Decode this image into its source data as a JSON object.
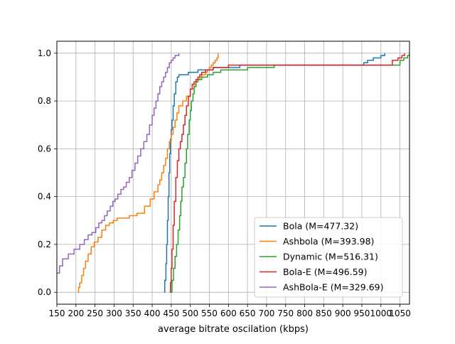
{
  "chart_data": {
    "type": "line",
    "title": "",
    "xlabel": "average bitrate oscilation (kbps)",
    "ylabel": "",
    "xlim": [
      150,
      1075
    ],
    "ylim": [
      -0.05,
      1.05
    ],
    "grid": true,
    "legend_position": "lower-right",
    "x_ticks": [
      150,
      200,
      250,
      300,
      350,
      400,
      450,
      500,
      550,
      600,
      650,
      700,
      750,
      800,
      850,
      900,
      950,
      1000,
      1050
    ],
    "x_tick_labels": [
      "150",
      "200",
      "250",
      "300",
      "350",
      "400",
      "450",
      "500",
      "550",
      "600",
      "650",
      "700",
      "750",
      "800",
      "850",
      "900",
      "950",
      "1000",
      "1050"
    ],
    "y_ticks": [
      0.0,
      0.2,
      0.4,
      0.6,
      0.8,
      1.0
    ],
    "y_tick_labels": [
      "0.0",
      "0.2",
      "0.4",
      "0.6",
      "0.8",
      "1.0"
    ],
    "series": [
      {
        "name": "Bola (M=477.32)",
        "color": "#1f77b4",
        "x": [
          431,
          433,
          436,
          438,
          440,
          442,
          444,
          446,
          448,
          450,
          452,
          455,
          458,
          462,
          466,
          470,
          478,
          495,
          520,
          560,
          630,
          955,
          965,
          975,
          980,
          990,
          1000,
          1005,
          1010
        ],
        "y": [
          0.0,
          0.05,
          0.12,
          0.2,
          0.3,
          0.4,
          0.5,
          0.58,
          0.64,
          0.68,
          0.72,
          0.78,
          0.83,
          0.88,
          0.9,
          0.91,
          0.91,
          0.92,
          0.93,
          0.94,
          0.95,
          0.96,
          0.97,
          0.97,
          0.98,
          0.98,
          0.99,
          0.99,
          1.0
        ]
      },
      {
        "name": "Ashbola (M=393.98)",
        "color": "#ff7f0e",
        "x": [
          205,
          207,
          210,
          215,
          220,
          225,
          232,
          240,
          248,
          258,
          268,
          278,
          288,
          298,
          308,
          320,
          340,
          360,
          380,
          395,
          405,
          415,
          420,
          425,
          430,
          435,
          440,
          445,
          450,
          455,
          460,
          465,
          470,
          480,
          490,
          500,
          510,
          515,
          520,
          525,
          530,
          540,
          545,
          550,
          555,
          560,
          565,
          570,
          573
        ],
        "y": [
          0.0,
          0.02,
          0.04,
          0.07,
          0.1,
          0.13,
          0.16,
          0.19,
          0.21,
          0.23,
          0.26,
          0.28,
          0.29,
          0.3,
          0.31,
          0.31,
          0.32,
          0.33,
          0.36,
          0.39,
          0.42,
          0.45,
          0.47,
          0.5,
          0.53,
          0.56,
          0.6,
          0.63,
          0.66,
          0.69,
          0.72,
          0.75,
          0.78,
          0.8,
          0.82,
          0.85,
          0.87,
          0.88,
          0.89,
          0.9,
          0.91,
          0.92,
          0.93,
          0.94,
          0.95,
          0.96,
          0.97,
          0.98,
          1.0
        ]
      },
      {
        "name": "Dynamic (M=516.31)",
        "color": "#2ca02c",
        "x": [
          448,
          452,
          456,
          460,
          464,
          468,
          472,
          475,
          478,
          482,
          486,
          490,
          493,
          497,
          500,
          503,
          507,
          510,
          515,
          520,
          530,
          545,
          560,
          580,
          600,
          650,
          720,
          900,
          1050,
          1060,
          1070,
          1075
        ],
        "y": [
          0.0,
          0.05,
          0.1,
          0.15,
          0.2,
          0.26,
          0.32,
          0.38,
          0.44,
          0.48,
          0.54,
          0.6,
          0.66,
          0.72,
          0.76,
          0.8,
          0.83,
          0.86,
          0.88,
          0.89,
          0.9,
          0.91,
          0.92,
          0.93,
          0.93,
          0.94,
          0.95,
          0.95,
          0.97,
          0.98,
          0.99,
          1.0
        ]
      },
      {
        "name": "Bola-E (M=496.59)",
        "color": "#d62728",
        "x": [
          446,
          448,
          450,
          452,
          455,
          458,
          462,
          466,
          470,
          474,
          478,
          482,
          486,
          490,
          495,
          500,
          505,
          510,
          515,
          520,
          525,
          530,
          540,
          550,
          560,
          580,
          600,
          650,
          1030,
          1045,
          1055,
          1062
        ],
        "y": [
          0.0,
          0.04,
          0.1,
          0.18,
          0.28,
          0.38,
          0.48,
          0.55,
          0.6,
          0.63,
          0.66,
          0.7,
          0.74,
          0.78,
          0.82,
          0.85,
          0.87,
          0.88,
          0.89,
          0.9,
          0.91,
          0.92,
          0.93,
          0.93,
          0.94,
          0.94,
          0.95,
          0.95,
          0.97,
          0.98,
          0.99,
          1.0
        ]
      },
      {
        "name": "AshBola-E (M=329.69)",
        "color": "#9467bd",
        "x": [
          150,
          157,
          165,
          180,
          195,
          210,
          222,
          232,
          242,
          252,
          260,
          268,
          275,
          282,
          290,
          297,
          303,
          310,
          318,
          325,
          332,
          340,
          347,
          355,
          362,
          370,
          378,
          386,
          393,
          400,
          405,
          410,
          415,
          420,
          425,
          430,
          435,
          440,
          445,
          450,
          455,
          460,
          470
        ],
        "y": [
          0.08,
          0.11,
          0.14,
          0.16,
          0.18,
          0.2,
          0.22,
          0.24,
          0.25,
          0.27,
          0.29,
          0.3,
          0.32,
          0.34,
          0.36,
          0.38,
          0.39,
          0.41,
          0.43,
          0.44,
          0.46,
          0.48,
          0.51,
          0.54,
          0.57,
          0.6,
          0.63,
          0.66,
          0.7,
          0.74,
          0.77,
          0.8,
          0.83,
          0.86,
          0.88,
          0.9,
          0.92,
          0.94,
          0.96,
          0.97,
          0.98,
          0.99,
          1.0
        ]
      }
    ]
  }
}
